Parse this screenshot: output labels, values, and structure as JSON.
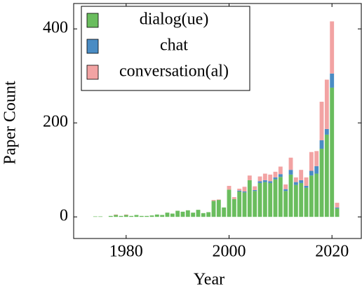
{
  "chart_data": {
    "type": "bar",
    "stacked": true,
    "xlabel": "Year",
    "ylabel": "Paper Count",
    "x": [
      1974,
      1975,
      1976,
      1977,
      1978,
      1979,
      1980,
      1981,
      1982,
      1983,
      1984,
      1985,
      1986,
      1987,
      1988,
      1989,
      1990,
      1991,
      1992,
      1993,
      1994,
      1995,
      1996,
      1997,
      1998,
      1999,
      2000,
      2001,
      2002,
      2003,
      2004,
      2005,
      2006,
      2007,
      2008,
      2009,
      2010,
      2011,
      2012,
      2013,
      2014,
      2015,
      2016,
      2017,
      2018,
      2019,
      2020,
      2021
    ],
    "series": [
      {
        "name": "dialog(ue)",
        "color": "#6abd5e",
        "values": [
          1,
          1,
          0,
          2,
          4,
          2,
          4,
          2,
          4,
          2,
          2,
          3,
          5,
          4,
          9,
          7,
          13,
          11,
          14,
          9,
          15,
          8,
          10,
          34,
          36,
          20,
          58,
          38,
          54,
          52,
          78,
          55,
          72,
          74,
          72,
          80,
          85,
          55,
          90,
          68,
          72,
          62,
          88,
          92,
          145,
          175,
          275,
          18
        ]
      },
      {
        "name": "chat",
        "color": "#4a8cc4",
        "values": [
          0,
          0,
          0,
          0,
          0,
          0,
          0,
          0,
          0,
          0,
          0,
          0,
          0,
          0,
          0,
          0,
          0,
          0,
          0,
          0,
          0,
          0,
          0,
          0,
          0,
          0,
          0,
          0,
          2,
          2,
          0,
          2,
          4,
          4,
          4,
          4,
          6,
          4,
          10,
          6,
          6,
          4,
          10,
          16,
          18,
          12,
          30,
          2
        ]
      },
      {
        "name": "conversation(al)",
        "color": "#f2a3a3",
        "values": [
          0,
          0,
          0,
          0,
          1,
          0,
          1,
          0,
          0,
          0,
          0,
          0,
          0,
          0,
          0,
          0,
          0,
          0,
          0,
          0,
          0,
          0,
          0,
          2,
          1,
          0,
          8,
          4,
          4,
          10,
          10,
          8,
          10,
          14,
          14,
          12,
          16,
          10,
          26,
          10,
          22,
          18,
          40,
          32,
          82,
          105,
          111,
          10
        ]
      }
    ],
    "xlim": [
      1969.8,
      2025.7
    ],
    "xticks": [
      1980,
      2000,
      2020
    ],
    "ylim": [
      -46,
      454
    ],
    "yticks": [
      0,
      200,
      400
    ],
    "legend": "upper left"
  }
}
